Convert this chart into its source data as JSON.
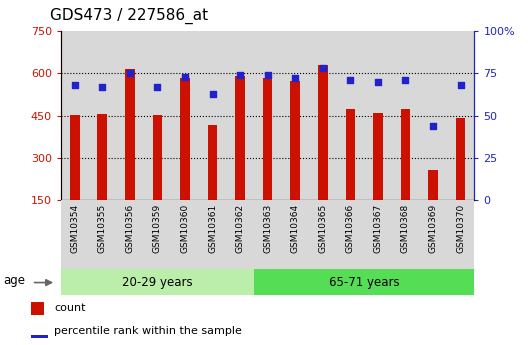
{
  "title": "GDS473 / 227586_at",
  "samples": [
    "GSM10354",
    "GSM10355",
    "GSM10356",
    "GSM10359",
    "GSM10360",
    "GSM10361",
    "GSM10362",
    "GSM10363",
    "GSM10364",
    "GSM10365",
    "GSM10366",
    "GSM10367",
    "GSM10368",
    "GSM10369",
    "GSM10370"
  ],
  "counts": [
    452,
    457,
    615,
    452,
    582,
    418,
    592,
    582,
    572,
    630,
    472,
    458,
    472,
    258,
    442
  ],
  "percentiles": [
    68,
    67,
    75,
    67,
    73,
    63,
    74,
    74,
    72,
    78,
    71,
    70,
    71,
    44,
    68
  ],
  "group1_label": "20-29 years",
  "group2_label": "65-71 years",
  "group1_count": 7,
  "group2_count": 8,
  "ylim_left": [
    150,
    750
  ],
  "ylim_right": [
    0,
    100
  ],
  "yticks_left": [
    150,
    300,
    450,
    600,
    750
  ],
  "yticks_right": [
    0,
    25,
    50,
    75,
    100
  ],
  "ytick_labels_right": [
    "0",
    "25",
    "50",
    "75",
    "100%"
  ],
  "bar_color": "#cc1100",
  "dot_color": "#2222cc",
  "age_label": "age",
  "legend_count": "count",
  "legend_percentile": "percentile rank within the sample",
  "group1_bg": "#bbeeaa",
  "group2_bg": "#55dd55",
  "plot_bg": "#d8d8d8",
  "bar_width": 0.35,
  "title_fontsize": 11,
  "tick_fontsize": 8
}
